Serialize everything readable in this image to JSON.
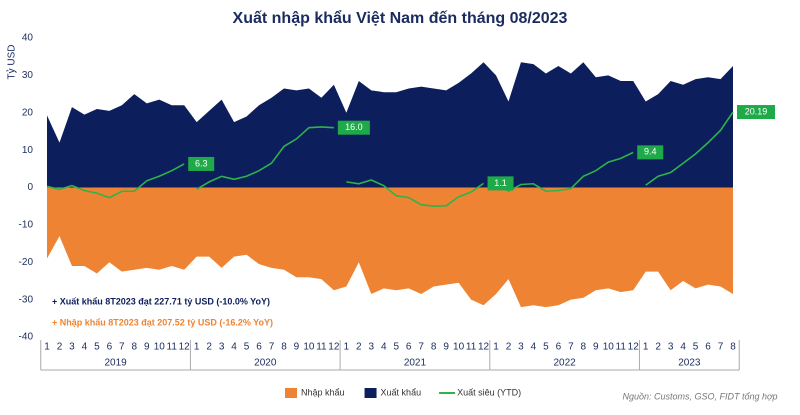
{
  "chart_data": {
    "type": "area",
    "title": "Xuất nhập khẩu Việt Nam đến tháng 08/2023",
    "y_label": "Tỷ USD",
    "categories": [
      "1",
      "2",
      "3",
      "4",
      "5",
      "6",
      "7",
      "8",
      "9",
      "10",
      "11",
      "12",
      "1",
      "2",
      "3",
      "4",
      "5",
      "6",
      "7",
      "8",
      "9",
      "10",
      "11",
      "12",
      "1",
      "2",
      "3",
      "4",
      "5",
      "6",
      "7",
      "8",
      "9",
      "10",
      "11",
      "12",
      "1",
      "2",
      "3",
      "4",
      "5",
      "6",
      "7",
      "8",
      "9",
      "10",
      "11",
      "12",
      "1",
      "2",
      "3",
      "4",
      "5",
      "6",
      "7",
      "8"
    ],
    "groups": [
      {
        "label": "2019",
        "months": 12
      },
      {
        "label": "2020",
        "months": 12
      },
      {
        "label": "2021",
        "months": 12
      },
      {
        "label": "2022",
        "months": 12
      },
      {
        "label": "2023",
        "months": 8
      }
    ],
    "ylim": [
      -40,
      40
    ],
    "yticks": [
      -40,
      -30,
      -20,
      -10,
      0,
      10,
      20,
      30,
      40
    ],
    "grid": false,
    "series": [
      {
        "name": "Nhập khẩu",
        "type": "area",
        "color": "#ee8433",
        "values": [
          -19,
          -13,
          -21,
          -21,
          -23,
          -20,
          -22.5,
          -22,
          -21.5,
          -22,
          -21,
          -22,
          -18.5,
          -18.5,
          -21.5,
          -18.5,
          -18,
          -20.5,
          -21.5,
          -22,
          -24,
          -24,
          -24.5,
          -27.5,
          -26.5,
          -20,
          -28.5,
          -27,
          -27.5,
          -27,
          -28.5,
          -26.5,
          -26,
          -25.5,
          -30,
          -31.5,
          -28.5,
          -24.5,
          -32,
          -31.5,
          -32,
          -31.5,
          -30,
          -29.5,
          -27.5,
          -27,
          -28,
          -27.5,
          -22.5,
          -22.5,
          -27.5,
          -25,
          -27,
          -26,
          -26.5,
          -28.5
        ]
      },
      {
        "name": "Xuất khẩu",
        "type": "area",
        "color": "#0c1f5c",
        "values": [
          19.3,
          12,
          21.5,
          19.5,
          21,
          20.5,
          22,
          25,
          22.5,
          23.5,
          22,
          22,
          17.5,
          20.5,
          23.5,
          17.5,
          19,
          22,
          24,
          26.5,
          26,
          26.5,
          24,
          27.5,
          20,
          28.5,
          26,
          25.5,
          25.5,
          26.5,
          27,
          26.5,
          26,
          28,
          30.5,
          33.5,
          30,
          23,
          33.5,
          33,
          30.5,
          32.5,
          30.5,
          33.5,
          29.5,
          30,
          28.5,
          28.5,
          23,
          25,
          28.5,
          27.5,
          29,
          29.5,
          29,
          32.5
        ]
      },
      {
        "name": "Xuất siêu (YTD)",
        "type": "line",
        "color": "#2db34a",
        "values": [
          0.3,
          -0.5,
          0.5,
          -0.8,
          -1.5,
          -2.7,
          -1,
          -1,
          1.8,
          3,
          4.5,
          6.3,
          -0.5,
          1.5,
          3,
          2.2,
          3,
          4.5,
          6.5,
          11,
          13,
          16,
          16.2,
          16,
          1.5,
          1,
          2,
          0.5,
          -2.2,
          -2.7,
          -4.6,
          -5,
          -4.9,
          -2.5,
          -1.2,
          1.1,
          1,
          -1,
          0.8,
          1,
          -1,
          -0.8,
          -0.3,
          3,
          4.5,
          6.8,
          7.8,
          9.4,
          0.6,
          3,
          4,
          6.5,
          9,
          12,
          15.3,
          20.19
        ],
        "value_labels": [
          null,
          null,
          null,
          null,
          null,
          null,
          null,
          null,
          null,
          null,
          null,
          "6.3",
          null,
          null,
          null,
          null,
          null,
          null,
          null,
          null,
          null,
          null,
          null,
          "16.0",
          null,
          null,
          null,
          null,
          null,
          null,
          null,
          null,
          null,
          null,
          null,
          "1.1",
          null,
          null,
          null,
          null,
          null,
          null,
          null,
          null,
          null,
          null,
          null,
          "9.4",
          null,
          null,
          null,
          null,
          null,
          null,
          null,
          "20.19"
        ]
      }
    ],
    "annotations": [
      {
        "text": "+ Xuất khẩu 8T2023 đạt 227.71 tỷ USD (-10.0% YoY)",
        "color": "#0c1f5c"
      },
      {
        "text": "+ Nhập khẩu 8T2023 đạt 207.52 tỷ USD (-16.2% YoY)",
        "color": "#ee8433"
      }
    ],
    "source": "Nguồn: Customs, GSO, FIDT tổng hợp"
  }
}
